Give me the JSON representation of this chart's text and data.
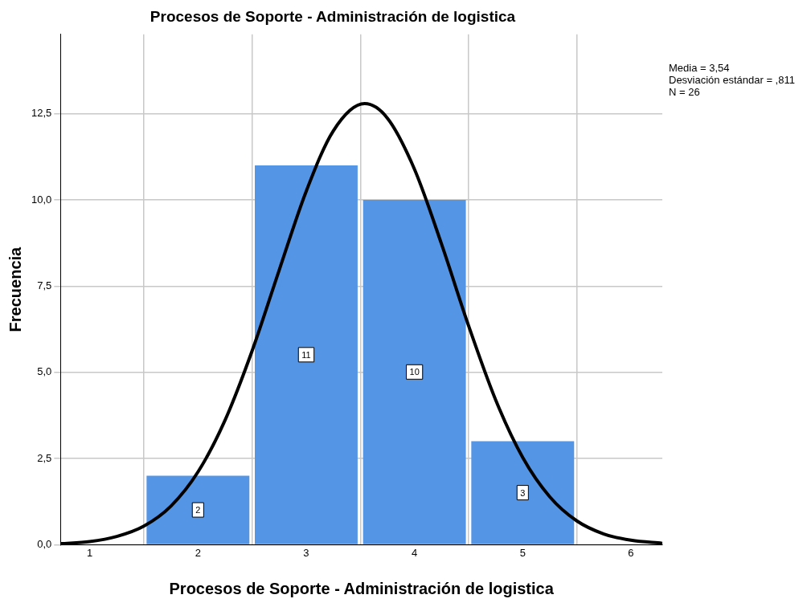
{
  "chart_data": {
    "type": "histogram",
    "title": "Procesos de Soporte - Administración de logistica",
    "xlabel": "Procesos de Soporte - Administración de logistica",
    "ylabel": "Frecuencia",
    "annotations": [
      "Media = 3,54",
      "Desviación estándar = ,811",
      "N = 26"
    ],
    "bins": [
      1.5,
      2.5,
      3.5,
      4.5,
      5.5
    ],
    "values": [
      2,
      11,
      10,
      3
    ],
    "color": "#5595e5",
    "value_labels": [
      "2",
      "11",
      "10",
      "3"
    ],
    "series": [
      {
        "type": "line",
        "color": "#000000",
        "x": [
          0.73,
          1,
          1.25,
          1.5,
          1.75,
          2,
          2.25,
          2.5,
          2.75,
          3,
          3.25,
          3.54,
          3.75,
          4,
          4.25,
          4.5,
          4.75,
          5,
          5.25,
          5.5,
          5.75,
          6,
          6.29
        ],
        "values": [
          0.03,
          0.09,
          0.24,
          0.54,
          1.12,
          2.11,
          3.61,
          5.62,
          7.96,
          10.25,
          12.0,
          12.79,
          12.37,
          10.89,
          8.72,
          6.35,
          4.2,
          2.53,
          1.39,
          0.69,
          0.31,
          0.13,
          0.04
        ]
      }
    ],
    "xlim": [
      0.73,
      6.29
    ],
    "xticks": [
      1,
      2,
      3,
      4,
      5,
      6
    ],
    "ylim": [
      0,
      14.8
    ],
    "yticks": [
      {
        "value": 0,
        "label": "0,0"
      },
      {
        "value": 2.5,
        "label": "2,5"
      },
      {
        "value": 5,
        "label": "5,0"
      },
      {
        "value": 7.5,
        "label": "7,5"
      },
      {
        "value": 10,
        "label": "10,0"
      },
      {
        "value": 12.5,
        "label": "12,5"
      }
    ],
    "grid": true,
    "marker": "none",
    "legend": false
  }
}
